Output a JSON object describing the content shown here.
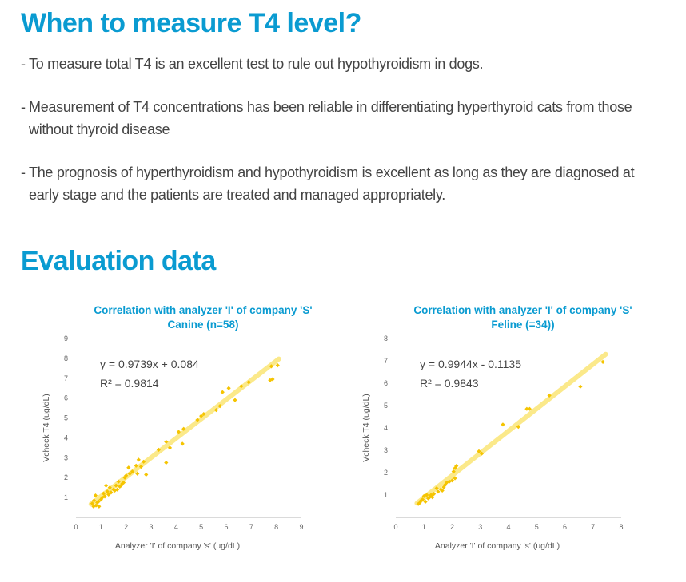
{
  "heading1": "When to measure T4 level?",
  "bullets": [
    {
      "dash": "-",
      "text": "To measure total T4 is an excellent test to rule out hypothyroidism in dogs."
    },
    {
      "dash": "-",
      "text": "Measurement of T4 concentrations has been reliable in differentiating hyperthyroid cats from those without thyroid disease"
    },
    {
      "dash": "-",
      "text": "The prognosis of hyperthyroidism and hypothyroidism is excellent as long as they are diagnosed at early stage and the patients are treated and managed appropriately."
    }
  ],
  "heading2": "Evaluation data",
  "colors": {
    "heading": "#0a9bd1",
    "points": "#f5c400",
    "trendline": "#fbe98a",
    "axis": "#b5b5b5"
  },
  "chart_data": [
    {
      "type": "scatter",
      "title": "Correlation with analyzer 'I' of company 'S'",
      "subtitle": "Canine (n=58)",
      "xlabel": "Analyzer 'I' of company 's' (ug/dL)",
      "ylabel": "Vcheck T4 (ug/dL)",
      "xlim": [
        0,
        9
      ],
      "ylim": [
        0,
        9
      ],
      "xticks": [
        0,
        1,
        2,
        3,
        4,
        5,
        6,
        7,
        8,
        9
      ],
      "yticks": [
        1,
        2,
        3,
        4,
        5,
        6,
        7,
        8,
        9
      ],
      "equation": "y = 0.9739x + 0.084",
      "r2": "R² = 0.9814",
      "trendline": {
        "slope": 0.9739,
        "intercept": 0.084,
        "x_range": [
          0.6,
          8.1
        ]
      },
      "grid": false,
      "points": [
        [
          0.65,
          0.7
        ],
        [
          0.7,
          0.55
        ],
        [
          0.72,
          0.85
        ],
        [
          0.78,
          1.1
        ],
        [
          0.8,
          0.6
        ],
        [
          0.85,
          0.75
        ],
        [
          0.9,
          0.8
        ],
        [
          0.92,
          0.55
        ],
        [
          1.0,
          0.9
        ],
        [
          1.05,
          1.0
        ],
        [
          1.1,
          1.2
        ],
        [
          1.15,
          1.05
        ],
        [
          1.2,
          1.6
        ],
        [
          1.25,
          1.3
        ],
        [
          1.3,
          1.15
        ],
        [
          1.35,
          1.5
        ],
        [
          1.4,
          1.25
        ],
        [
          1.5,
          1.4
        ],
        [
          1.55,
          1.35
        ],
        [
          1.6,
          1.6
        ],
        [
          1.65,
          1.4
        ],
        [
          1.7,
          1.8
        ],
        [
          1.75,
          1.55
        ],
        [
          1.8,
          1.6
        ],
        [
          1.85,
          1.7
        ],
        [
          1.9,
          1.75
        ],
        [
          1.95,
          2.0
        ],
        [
          2.0,
          2.1
        ],
        [
          2.1,
          2.5
        ],
        [
          2.15,
          2.2
        ],
        [
          2.25,
          2.3
        ],
        [
          2.4,
          2.6
        ],
        [
          2.45,
          2.2
        ],
        [
          2.5,
          2.9
        ],
        [
          2.6,
          2.55
        ],
        [
          2.7,
          2.8
        ],
        [
          2.8,
          2.15
        ],
        [
          3.6,
          2.75
        ],
        [
          3.6,
          3.8
        ],
        [
          3.75,
          3.5
        ],
        [
          4.1,
          4.3
        ],
        [
          4.25,
          3.7
        ],
        [
          4.3,
          4.45
        ],
        [
          4.85,
          4.9
        ],
        [
          5.0,
          5.1
        ],
        [
          5.1,
          5.2
        ],
        [
          5.6,
          5.4
        ],
        [
          5.75,
          5.6
        ],
        [
          5.85,
          6.3
        ],
        [
          6.1,
          6.5
        ],
        [
          6.35,
          5.9
        ],
        [
          6.9,
          6.8
        ],
        [
          7.8,
          7.6
        ],
        [
          7.75,
          6.9
        ],
        [
          7.85,
          6.95
        ],
        [
          8.05,
          7.65
        ],
        [
          6.6,
          6.6
        ],
        [
          3.3,
          3.4
        ]
      ]
    },
    {
      "type": "scatter",
      "title": "Correlation with analyzer 'I' of company 'S'",
      "subtitle": "Feline (=34))",
      "xlabel": "Analyzer 'I' of company 's' (ug/dL)",
      "ylabel": "Vcheck T4 (ug/dL)",
      "xlim": [
        0,
        8
      ],
      "ylim": [
        0,
        8
      ],
      "xticks": [
        0,
        1,
        2,
        3,
        4,
        5,
        6,
        7,
        8
      ],
      "yticks": [
        1,
        2,
        3,
        4,
        5,
        6,
        7,
        8
      ],
      "equation": "y = 0.9944x - 0.1135",
      "r2": "R² = 0.9843",
      "trendline": {
        "slope": 0.9944,
        "intercept": -0.1135,
        "x_range": [
          0.75,
          7.45
        ]
      },
      "grid": false,
      "points": [
        [
          0.8,
          0.6
        ],
        [
          0.85,
          0.65
        ],
        [
          0.95,
          0.8
        ],
        [
          1.0,
          0.95
        ],
        [
          1.05,
          0.7
        ],
        [
          1.1,
          1.0
        ],
        [
          1.15,
          0.85
        ],
        [
          1.2,
          0.9
        ],
        [
          1.25,
          1.0
        ],
        [
          1.3,
          0.9
        ],
        [
          1.45,
          1.3
        ],
        [
          1.5,
          1.15
        ],
        [
          1.6,
          1.25
        ],
        [
          1.65,
          1.2
        ],
        [
          1.7,
          1.35
        ],
        [
          1.8,
          1.55
        ],
        [
          1.9,
          1.6
        ],
        [
          2.0,
          1.65
        ],
        [
          2.05,
          2.05
        ],
        [
          2.1,
          2.2
        ],
        [
          2.15,
          2.3
        ],
        [
          2.1,
          1.75
        ],
        [
          2.95,
          2.95
        ],
        [
          3.05,
          2.85
        ],
        [
          3.8,
          4.15
        ],
        [
          4.35,
          4.05
        ],
        [
          4.65,
          4.85
        ],
        [
          4.75,
          4.85
        ],
        [
          5.45,
          5.45
        ],
        [
          6.55,
          5.85
        ],
        [
          7.35,
          6.95
        ],
        [
          1.35,
          1.05
        ],
        [
          1.75,
          1.45
        ],
        [
          0.9,
          0.75
        ]
      ]
    }
  ]
}
